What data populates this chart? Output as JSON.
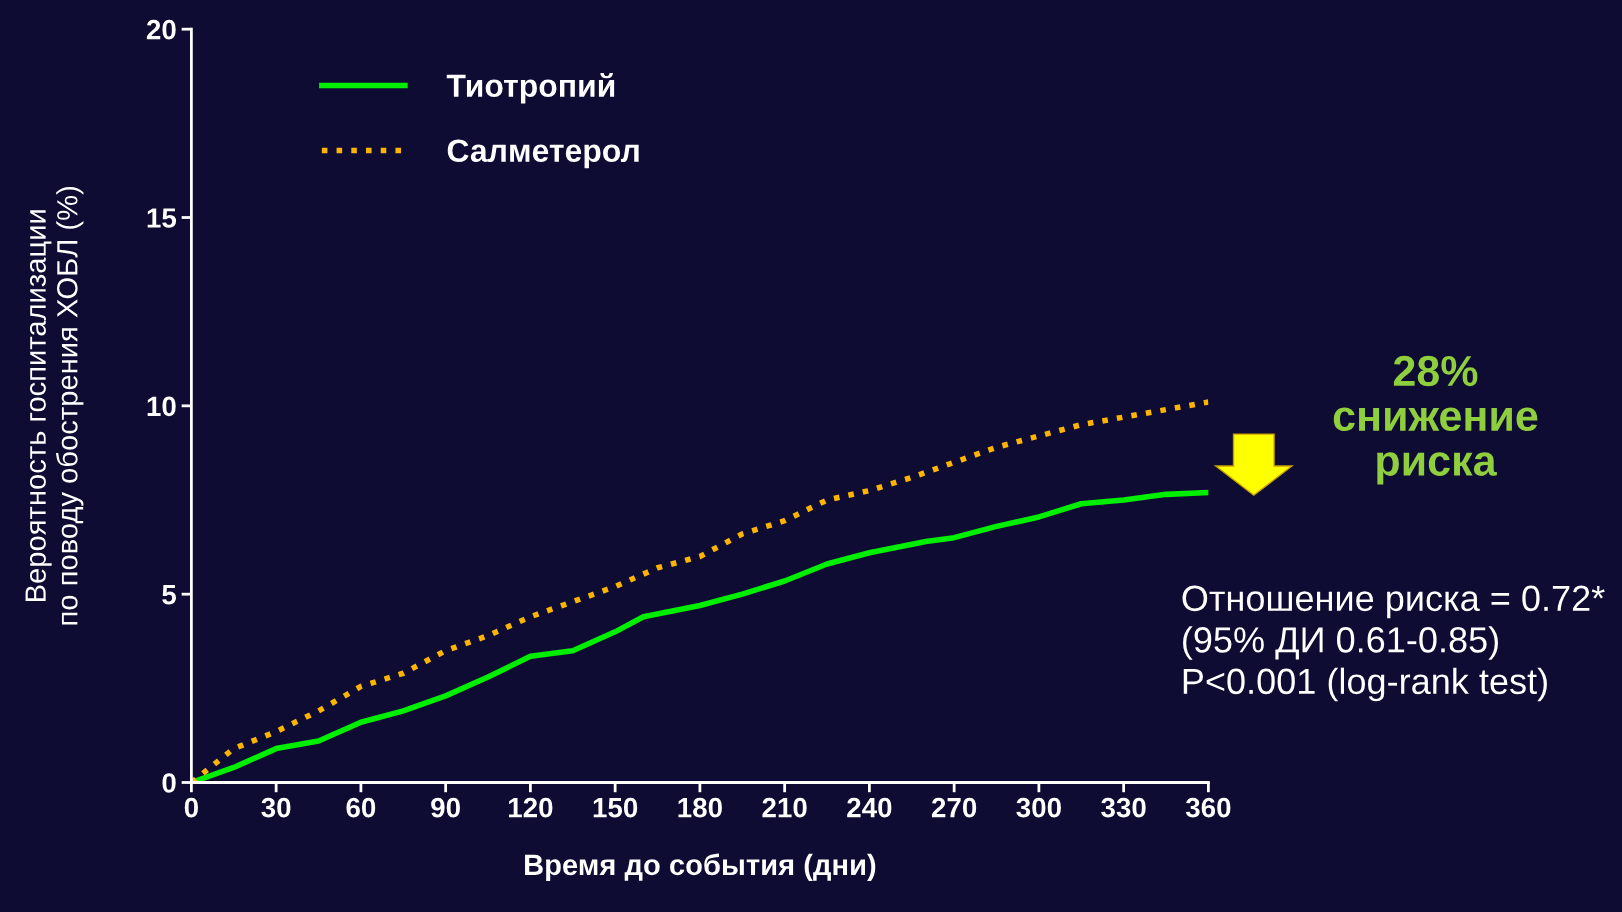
{
  "chart_data": {
    "type": "line",
    "xlabel": "Время до события (дни)",
    "ylabel": "Вероятность госпитализации\nпо поводу обострения ХОБЛ (%)",
    "xlim": [
      0,
      360
    ],
    "xticks": [
      0,
      30,
      60,
      90,
      120,
      150,
      180,
      210,
      240,
      270,
      300,
      330,
      360
    ],
    "ylim": [
      0,
      20
    ],
    "yticks": [
      0,
      5,
      10,
      15,
      20
    ],
    "grid": false,
    "legend": "top left",
    "series": [
      {
        "name": "Тиотропий",
        "color": "#00ee00",
        "line_style": "solid",
        "x": [
          0,
          15,
          30,
          45,
          60,
          75,
          90,
          105,
          120,
          135,
          150,
          160,
          180,
          195,
          210,
          225,
          240,
          260,
          270,
          285,
          300,
          315,
          330,
          345,
          360
        ],
        "values": [
          0,
          0.4,
          0.9,
          1.1,
          1.6,
          1.9,
          2.3,
          2.8,
          3.35,
          3.5,
          4.0,
          4.4,
          4.7,
          5.0,
          5.35,
          5.8,
          6.1,
          6.4,
          6.5,
          6.8,
          7.05,
          7.4,
          7.5,
          7.65,
          7.7
        ]
      },
      {
        "name": "Салметерол",
        "color": "#ffb400",
        "line_style": "dotted",
        "x": [
          0,
          15,
          30,
          45,
          60,
          75,
          90,
          105,
          120,
          135,
          150,
          165,
          180,
          195,
          210,
          225,
          240,
          255,
          270,
          285,
          300,
          315,
          330,
          345,
          360
        ],
        "values": [
          0,
          0.9,
          1.35,
          1.9,
          2.55,
          2.9,
          3.5,
          3.9,
          4.4,
          4.8,
          5.2,
          5.7,
          6.0,
          6.6,
          6.95,
          7.5,
          7.75,
          8.1,
          8.5,
          8.9,
          9.2,
          9.5,
          9.7,
          9.9,
          10.1
        ]
      }
    ],
    "annotations": [
      "28%\nснижение\nриска",
      "Отношение риска = 0.72*\n(95% ДИ 0.61-0.85)\nP<0.001 (log-rank test)"
    ]
  }
}
